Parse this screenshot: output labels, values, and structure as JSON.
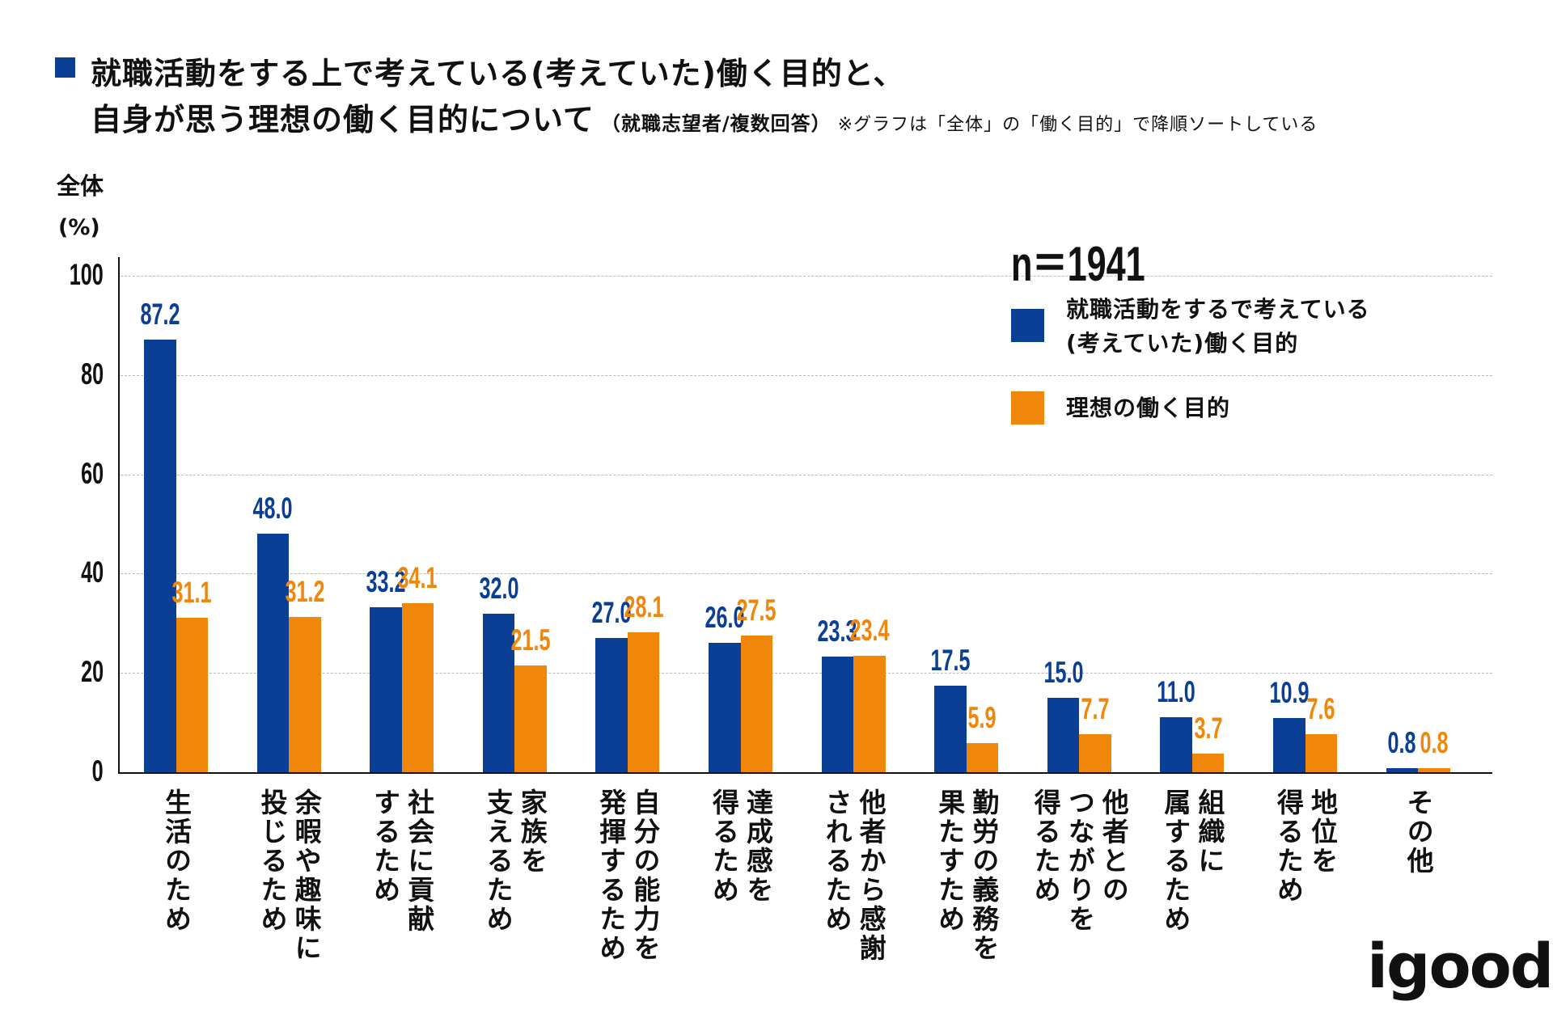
{
  "title": {
    "line1": "就職活動をする上で考えている(考えていた)働く目的と、",
    "line2": "自身が思う理想の働く目的について",
    "subtitle": "（就職志望者/複数回答）",
    "note": "※グラフは「全体」の「働く目的」で降順ソートしている"
  },
  "logo": "igoods",
  "chart_data": {
    "type": "bar",
    "title": "就職活動をする上で考えている(考えていた)働く目的と、自身が思う理想の働く目的について",
    "ylabel": "全体",
    "yunit": "(%)",
    "ylim": [
      0,
      100
    ],
    "yticks": [
      "0",
      "20",
      "40",
      "60",
      "80",
      "100"
    ],
    "grid": true,
    "sample_size": "n＝1941",
    "legend_position": "top-right",
    "categories": [
      "生活のため",
      "余暇や趣味に\n投じるため",
      "社会に貢献\nするため",
      "家族を\n支えるため",
      "自分の能力を\n発揮するため",
      "達成感を\n得るため",
      "他者から感謝\nされるため",
      "勤労の義務を\n果たすため",
      "他者との\nつながりを\n得るため",
      "組織に\n属するため",
      "地位を\n得るため",
      "その他"
    ],
    "series": [
      {
        "name": "就職活動をするで考えている\n(考えていた)働く目的",
        "color": "#0b3f96",
        "values": [
          87.2,
          48.0,
          33.2,
          32.0,
          27.0,
          26.0,
          23.3,
          17.5,
          15.0,
          11.0,
          10.9,
          0.8
        ]
      },
      {
        "name": "理想の働く目的",
        "color": "#f0860a",
        "values": [
          31.1,
          31.2,
          34.1,
          21.5,
          28.1,
          27.5,
          23.4,
          5.9,
          7.7,
          3.7,
          7.6,
          0.8
        ]
      }
    ]
  }
}
